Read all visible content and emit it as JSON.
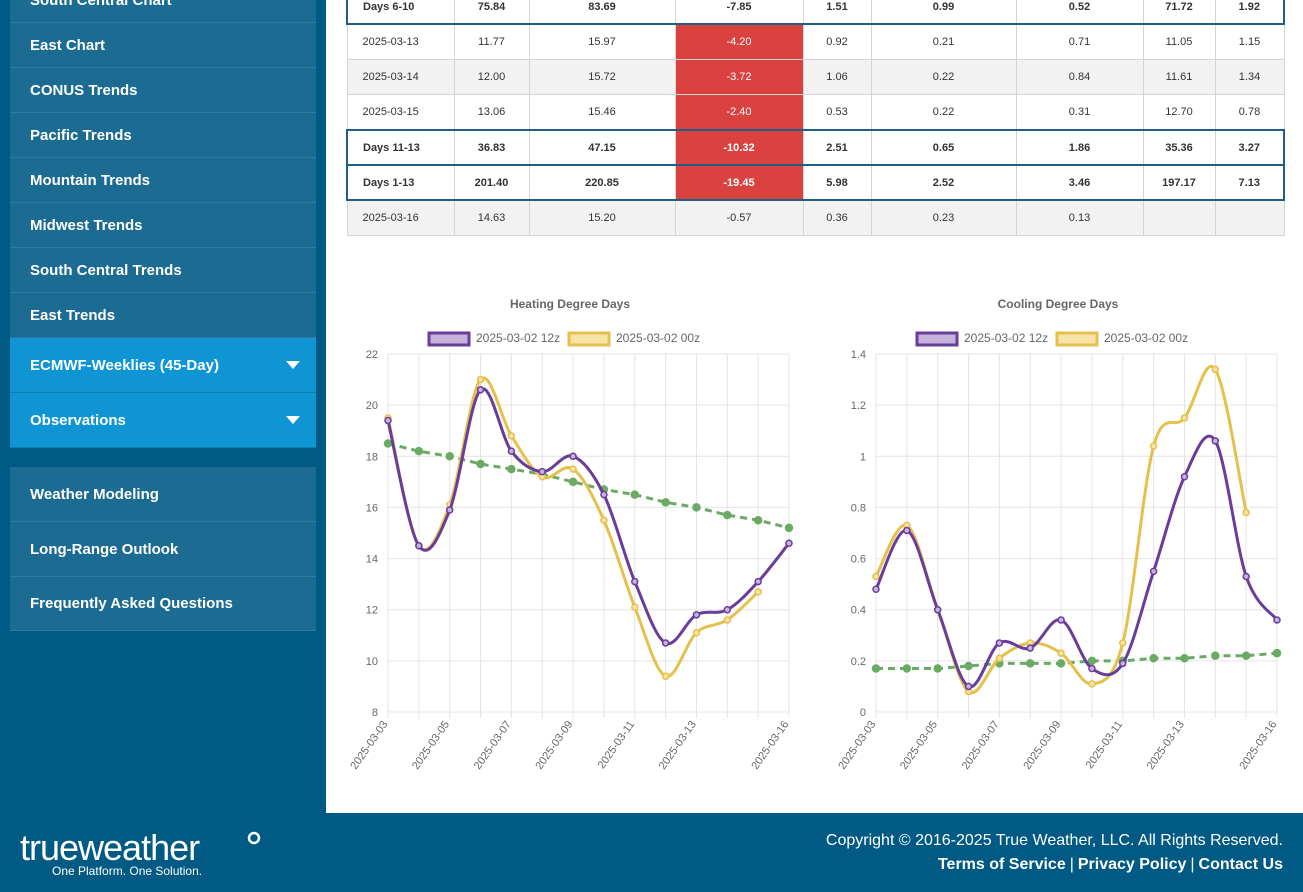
{
  "sidebar": {
    "items": [
      {
        "label": "South Central Chart"
      },
      {
        "label": "East Chart"
      },
      {
        "label": "CONUS Trends"
      },
      {
        "label": "Pacific Trends"
      },
      {
        "label": "Mountain Trends"
      },
      {
        "label": "Midwest Trends"
      },
      {
        "label": "South Central Trends"
      },
      {
        "label": "East Trends"
      }
    ],
    "expanders": [
      {
        "label": "ECMWF-Weeklies (45-Day)"
      },
      {
        "label": "Observations"
      }
    ],
    "main": [
      {
        "label": "Weather Modeling"
      },
      {
        "label": "Long-Range Outlook"
      },
      {
        "label": "Frequently Asked Questions"
      }
    ]
  },
  "table": {
    "rows": [
      {
        "type": "summary",
        "cells": [
          "Days 6-10",
          "75.84",
          "83.69",
          "-7.85",
          "1.51",
          "0.99",
          "0.52",
          "71.72",
          "1.92"
        ],
        "neg": false
      },
      {
        "type": "normal",
        "cells": [
          "2025-03-13",
          "11.77",
          "15.97",
          "-4.20",
          "0.92",
          "0.21",
          "0.71",
          "11.05",
          "1.15"
        ],
        "neg": true
      },
      {
        "type": "alt",
        "cells": [
          "2025-03-14",
          "12.00",
          "15.72",
          "-3.72",
          "1.06",
          "0.22",
          "0.84",
          "11.61",
          "1.34"
        ],
        "neg": true
      },
      {
        "type": "normal",
        "cells": [
          "2025-03-15",
          "13.06",
          "15.46",
          "-2.40",
          "0.53",
          "0.22",
          "0.31",
          "12.70",
          "0.78"
        ],
        "neg": true
      },
      {
        "type": "summary",
        "cells": [
          "Days 11-13",
          "36.83",
          "47.15",
          "-10.32",
          "2.51",
          "0.65",
          "1.86",
          "35.36",
          "3.27"
        ],
        "neg": true
      },
      {
        "type": "summary",
        "cells": [
          "Days 1-13",
          "201.40",
          "220.85",
          "-19.45",
          "5.98",
          "2.52",
          "3.46",
          "197.17",
          "7.13"
        ],
        "neg": true
      },
      {
        "type": "alt",
        "cells": [
          "2025-03-16",
          "14.63",
          "15.20",
          "-0.57",
          "0.36",
          "0.23",
          "0.13",
          "",
          ""
        ],
        "neg": false
      }
    ]
  },
  "chart_data": [
    {
      "type": "line",
      "title": "Heating Degree Days",
      "x": [
        "2025-03-03",
        "2025-03-04",
        "2025-03-05",
        "2025-03-06",
        "2025-03-07",
        "2025-03-08",
        "2025-03-09",
        "2025-03-10",
        "2025-03-11",
        "2025-03-12",
        "2025-03-13",
        "2025-03-14",
        "2025-03-15",
        "2025-03-16"
      ],
      "x_tick_labels": [
        "2025-03-03",
        "2025-03-05",
        "2025-03-07",
        "2025-03-09",
        "2025-03-11",
        "2025-03-13",
        "2025-03-16"
      ],
      "ylim": [
        8,
        22
      ],
      "yticks": [
        8,
        10,
        12,
        14,
        16,
        18,
        20,
        22
      ],
      "legend": "top",
      "grid": true,
      "series": [
        {
          "name": "2025-03-02 12z",
          "color": "#6a3d9a",
          "fill": "#c5b3dd",
          "values": [
            19.4,
            14.5,
            15.9,
            20.6,
            18.2,
            17.4,
            18.0,
            16.5,
            13.1,
            10.7,
            11.8,
            12.0,
            13.1,
            14.6
          ]
        },
        {
          "name": "2025-03-02 00z",
          "color": "#e6c04c",
          "fill": "#f6e3a6",
          "values": [
            19.5,
            14.5,
            16.1,
            21.0,
            18.8,
            17.2,
            17.5,
            15.5,
            12.1,
            9.4,
            11.1,
            11.6,
            12.7,
            null
          ]
        },
        {
          "name": "",
          "color": "#6aaa64",
          "dashed": true,
          "values": [
            18.5,
            18.2,
            18.0,
            17.7,
            17.5,
            17.3,
            17.0,
            16.7,
            16.5,
            16.2,
            16.0,
            15.7,
            15.5,
            15.2
          ]
        }
      ]
    },
    {
      "type": "line",
      "title": "Cooling Degree Days",
      "x": [
        "2025-03-03",
        "2025-03-04",
        "2025-03-05",
        "2025-03-06",
        "2025-03-07",
        "2025-03-08",
        "2025-03-09",
        "2025-03-10",
        "2025-03-11",
        "2025-03-12",
        "2025-03-13",
        "2025-03-14",
        "2025-03-15",
        "2025-03-16"
      ],
      "x_tick_labels": [
        "2025-03-03",
        "2025-03-05",
        "2025-03-07",
        "2025-03-09",
        "2025-03-11",
        "2025-03-13",
        "2025-03-16"
      ],
      "ylim": [
        0,
        1.4
      ],
      "yticks": [
        0,
        0.2,
        0.4,
        0.6,
        0.8,
        1.0,
        1.2,
        1.4
      ],
      "legend": "top",
      "grid": true,
      "series": [
        {
          "name": "2025-03-02 12z",
          "color": "#6a3d9a",
          "fill": "#c5b3dd",
          "values": [
            0.48,
            0.71,
            0.4,
            0.1,
            0.27,
            0.25,
            0.36,
            0.17,
            0.19,
            0.55,
            0.92,
            1.06,
            0.53,
            0.36
          ]
        },
        {
          "name": "2025-03-02 00z",
          "color": "#e6c04c",
          "fill": "#f6e3a6",
          "values": [
            0.53,
            0.73,
            0.4,
            0.08,
            0.21,
            0.27,
            0.23,
            0.11,
            0.27,
            1.04,
            1.15,
            1.34,
            0.78,
            null
          ]
        },
        {
          "name": "",
          "color": "#6aaa64",
          "dashed": true,
          "values": [
            0.17,
            0.17,
            0.17,
            0.18,
            0.19,
            0.19,
            0.19,
            0.2,
            0.2,
            0.21,
            0.21,
            0.22,
            0.22,
            0.23
          ]
        }
      ]
    }
  ],
  "footer": {
    "logo_main": "trueweather",
    "logo_tagline": "One Platform. One Solution.",
    "copyright": "Copyright © 2016-2025 True Weather, LLC. All Rights Reserved.",
    "links": [
      {
        "label": "Terms of Service"
      },
      {
        "label": "Privacy Policy"
      },
      {
        "label": "Contact Us"
      }
    ],
    "separator": "|"
  }
}
